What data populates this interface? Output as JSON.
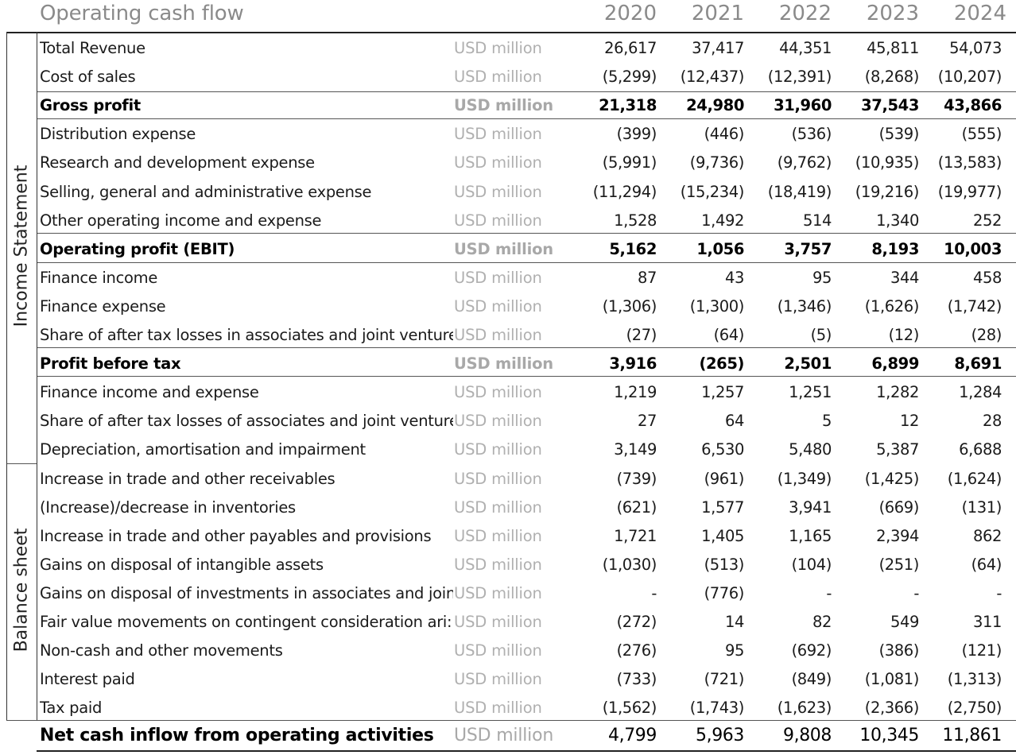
{
  "title": "Operating cash flow",
  "years": [
    "2020",
    "2021",
    "2022",
    "2023",
    "2024"
  ],
  "sections": {
    "income_statement": "Income Statement",
    "balance_sheet": "Balance sheet"
  },
  "rows": [
    {
      "label": "Total Revenue",
      "unit": "USD million",
      "values": [
        "26,617",
        "37,417",
        "44,351",
        "45,811",
        "54,073"
      ]
    },
    {
      "label": "Cost of sales",
      "unit": "USD million",
      "values": [
        "(5,299)",
        "(12,437)",
        "(12,391)",
        "(8,268)",
        "(10,207)"
      ]
    },
    {
      "label": "Gross profit",
      "unit": "USD million",
      "values": [
        "21,318",
        "24,980",
        "31,960",
        "37,543",
        "43,866"
      ]
    },
    {
      "label": "Distribution expense",
      "unit": "USD million",
      "values": [
        "(399)",
        "(446)",
        "(536)",
        "(539)",
        "(555)"
      ]
    },
    {
      "label": "Research and development expense",
      "unit": "USD million",
      "values": [
        "(5,991)",
        "(9,736)",
        "(9,762)",
        "(10,935)",
        "(13,583)"
      ]
    },
    {
      "label": "Selling, general and administrative expense",
      "unit": "USD million",
      "values": [
        "(11,294)",
        "(15,234)",
        "(18,419)",
        "(19,216)",
        "(19,977)"
      ]
    },
    {
      "label": "Other operating income and expense",
      "unit": "USD million",
      "values": [
        "1,528",
        "1,492",
        "514",
        "1,340",
        "252"
      ]
    },
    {
      "label": "Operating profit (EBIT)",
      "unit": "USD million",
      "values": [
        "5,162",
        "1,056",
        "3,757",
        "8,193",
        "10,003"
      ]
    },
    {
      "label": "Finance income",
      "unit": "USD million",
      "values": [
        "87",
        "43",
        "95",
        "344",
        "458"
      ]
    },
    {
      "label": "Finance expense",
      "unit": "USD million",
      "values": [
        "(1,306)",
        "(1,300)",
        "(1,346)",
        "(1,626)",
        "(1,742)"
      ]
    },
    {
      "label": "Share of after tax losses in associates and joint venture",
      "unit": "USD million",
      "values": [
        "(27)",
        "(64)",
        "(5)",
        "(12)",
        "(28)"
      ]
    },
    {
      "label": "Profit before tax",
      "unit": "USD million",
      "values": [
        "3,916",
        "(265)",
        "2,501",
        "6,899",
        "8,691"
      ]
    },
    {
      "label": "Finance income and expense",
      "unit": "USD million",
      "values": [
        "1,219",
        "1,257",
        "1,251",
        "1,282",
        "1,284"
      ]
    },
    {
      "label": "Share of after tax losses of associates and joint venture",
      "unit": "USD million",
      "values": [
        "27",
        "64",
        "5",
        "12",
        "28"
      ]
    },
    {
      "label": "Depreciation, amortisation and impairment",
      "unit": "USD million",
      "values": [
        "3,149",
        "6,530",
        "5,480",
        "5,387",
        "6,688"
      ]
    },
    {
      "label": "Increase in trade and other receivables",
      "unit": "USD million",
      "values": [
        "(739)",
        "(961)",
        "(1,349)",
        "(1,425)",
        "(1,624)"
      ]
    },
    {
      "label": "(Increase)/decrease in inventories",
      "unit": "USD million",
      "values": [
        "(621)",
        "1,577",
        "3,941",
        "(669)",
        "(131)"
      ]
    },
    {
      "label": "Increase in trade and other payables and provisions",
      "unit": "USD million",
      "values": [
        "1,721",
        "1,405",
        "1,165",
        "2,394",
        "862"
      ]
    },
    {
      "label": "Gains on disposal of intangible assets",
      "unit": "USD million",
      "values": [
        "(1,030)",
        "(513)",
        "(104)",
        "(251)",
        "(64)"
      ]
    },
    {
      "label": "Gains on disposal of investments in associates and join",
      "unit": "USD million",
      "values": [
        "-",
        "(776)",
        "-",
        "-",
        "-"
      ]
    },
    {
      "label": "Fair value movements on contingent consideration ari:",
      "unit": "USD million",
      "values": [
        "(272)",
        "14",
        "82",
        "549",
        "311"
      ]
    },
    {
      "label": "Non-cash and other movements",
      "unit": "USD million",
      "values": [
        "(276)",
        "95",
        "(692)",
        "(386)",
        "(121)"
      ]
    },
    {
      "label": "Interest paid",
      "unit": "USD million",
      "values": [
        "(733)",
        "(721)",
        "(849)",
        "(1,081)",
        "(1,313)"
      ]
    },
    {
      "label": "Tax paid",
      "unit": "USD million",
      "values": [
        "(1,562)",
        "(1,743)",
        "(1,623)",
        "(2,366)",
        "(2,750)"
      ]
    },
    {
      "label": "Net cash inflow from operating activities",
      "unit": "USD million",
      "values": [
        "4,799",
        "5,963",
        "9,808",
        "10,345",
        "11,861"
      ]
    }
  ]
}
